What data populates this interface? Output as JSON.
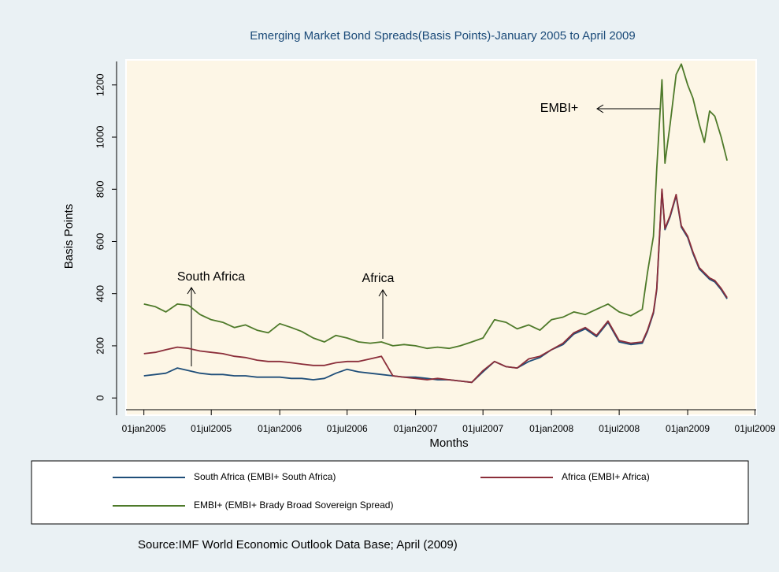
{
  "chart_data": {
    "type": "line",
    "title": "Emerging Market Bond Spreads(Basis Points)-January 2005 to April 2009",
    "x_label": "Months",
    "y_label": "Basis Points",
    "source": "Source:IMF World Economic Outlook Data Base; April (2009)",
    "annotations": [
      "South Africa",
      "Africa",
      "EMBI+"
    ],
    "x": [
      "2005-01-01",
      "2005-02-01",
      "2005-03-01",
      "2005-04-01",
      "2005-05-01",
      "2005-06-01",
      "2005-07-01",
      "2005-08-01",
      "2005-09-01",
      "2005-10-01",
      "2005-11-01",
      "2005-12-01",
      "2006-01-01",
      "2006-02-01",
      "2006-03-01",
      "2006-04-01",
      "2006-05-01",
      "2006-06-01",
      "2006-07-01",
      "2006-08-01",
      "2006-09-01",
      "2006-10-01",
      "2006-11-01",
      "2006-12-01",
      "2007-01-01",
      "2007-02-01",
      "2007-03-01",
      "2007-04-01",
      "2007-05-01",
      "2007-06-01",
      "2007-07-01",
      "2007-08-01",
      "2007-09-01",
      "2007-10-01",
      "2007-11-01",
      "2007-12-01",
      "2008-01-01",
      "2008-02-01",
      "2008-03-01",
      "2008-04-01",
      "2008-05-01",
      "2008-06-01",
      "2008-07-01",
      "2008-08-01",
      "2008-09-01",
      "2008-09-15",
      "2008-10-01",
      "2008-10-10",
      "2008-10-24",
      "2008-11-01",
      "2008-11-15",
      "2008-12-01",
      "2008-12-15",
      "2009-01-01",
      "2009-01-15",
      "2009-02-01",
      "2009-02-15",
      "2009-03-01",
      "2009-03-15",
      "2009-04-01",
      "2009-04-17"
    ],
    "series": [
      {
        "name": "South Africa (EMBI+ South Africa)",
        "color": "#1f4e79",
        "values": [
          85,
          90,
          95,
          115,
          105,
          95,
          90,
          90,
          85,
          85,
          80,
          80,
          80,
          75,
          75,
          70,
          75,
          95,
          110,
          100,
          95,
          90,
          85,
          80,
          80,
          75,
          70,
          70,
          65,
          60,
          100,
          140,
          120,
          115,
          140,
          155,
          185,
          205,
          245,
          265,
          235,
          290,
          215,
          205,
          210,
          255,
          325,
          415,
          795,
          645,
          695,
          775,
          655,
          615,
          555,
          495,
          475,
          455,
          445,
          415,
          380
        ]
      },
      {
        "name": "Africa (EMBI+ Africa)",
        "color": "#8b2e3a",
        "values": [
          170,
          175,
          185,
          195,
          190,
          180,
          175,
          170,
          160,
          155,
          145,
          140,
          140,
          135,
          130,
          125,
          125,
          135,
          140,
          140,
          150,
          160,
          85,
          80,
          75,
          70,
          75,
          70,
          65,
          60,
          105,
          140,
          120,
          115,
          150,
          160,
          185,
          210,
          250,
          270,
          240,
          295,
          220,
          210,
          215,
          260,
          330,
          420,
          800,
          650,
          700,
          780,
          660,
          620,
          560,
          500,
          480,
          460,
          450,
          420,
          385
        ]
      },
      {
        "name": "EMBI+ (EMBI+ Brady Broad Sovereign Spread)",
        "color": "#4e7a2a",
        "values": [
          360,
          350,
          330,
          360,
          355,
          320,
          300,
          290,
          270,
          280,
          260,
          250,
          285,
          270,
          255,
          230,
          215,
          240,
          230,
          215,
          210,
          215,
          200,
          205,
          200,
          190,
          195,
          190,
          200,
          215,
          230,
          300,
          290,
          265,
          280,
          260,
          300,
          310,
          330,
          320,
          340,
          360,
          330,
          315,
          340,
          480,
          620,
          880,
          1220,
          900,
          1050,
          1240,
          1280,
          1200,
          1150,
          1050,
          980,
          1100,
          1080,
          1000,
          910
        ]
      }
    ],
    "xlim": [
      "2004-11-14",
      "2009-07-04"
    ],
    "xticks": [
      {
        "value": "2005-01-01",
        "label": "01jan2005"
      },
      {
        "value": "2005-07-01",
        "label": "01jul2005"
      },
      {
        "value": "2006-01-01",
        "label": "01jan2006"
      },
      {
        "value": "2006-07-01",
        "label": "01jul2006"
      },
      {
        "value": "2007-01-01",
        "label": "01jan2007"
      },
      {
        "value": "2007-07-01",
        "label": "01jul2007"
      },
      {
        "value": "2008-01-01",
        "label": "01jan2008"
      },
      {
        "value": "2008-07-01",
        "label": "01jul2008"
      },
      {
        "value": "2009-01-01",
        "label": "01jan2009"
      },
      {
        "value": "2009-07-01",
        "label": "01jul2009"
      }
    ],
    "ylim": [
      -66,
      1290
    ],
    "yticks": [
      0,
      200,
      400,
      600,
      800,
      1000,
      1200
    ],
    "grid": false
  }
}
